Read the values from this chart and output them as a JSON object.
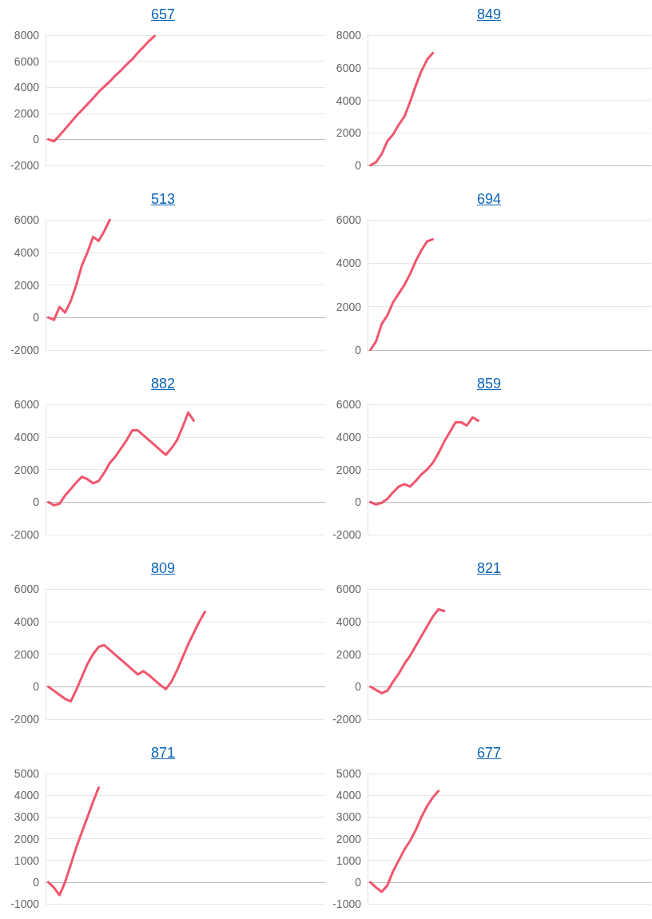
{
  "chart_data": [
    {
      "type": "line",
      "title": "657",
      "color": "#f0566e",
      "ylim": [
        -2000,
        8000
      ],
      "yticks": [
        -2000,
        0,
        2000,
        4000,
        6000,
        8000
      ],
      "grid": "y",
      "tick_labels": "y",
      "marker": "none",
      "categories": [
        null,
        null,
        null,
        null,
        null,
        null,
        null,
        null,
        null,
        null,
        null,
        null,
        null,
        null,
        null,
        null,
        null,
        null,
        null,
        null,
        null,
        null,
        null,
        null,
        null,
        null,
        null,
        null,
        null,
        null,
        null,
        null,
        null,
        null,
        null,
        null,
        null,
        null,
        null,
        null,
        null,
        null,
        null,
        null,
        null,
        null,
        null,
        null,
        null,
        null
      ],
      "values": [
        0,
        -150,
        300,
        800,
        1300,
        1800,
        2250,
        2700,
        3150,
        3650,
        4050,
        4450,
        4900,
        5300,
        5750,
        6150,
        6650,
        7100,
        7550,
        7950,
        null,
        null,
        null,
        null,
        null,
        null,
        null,
        null,
        null,
        null,
        null,
        null,
        null,
        null,
        null,
        null,
        null,
        null,
        null,
        null,
        null,
        null,
        null,
        null,
        null,
        null,
        null,
        null,
        null,
        null
      ]
    },
    {
      "type": "line",
      "title": "849",
      "color": "#f0566e",
      "ylim": [
        0,
        8000
      ],
      "yticks": [
        0,
        2000,
        4000,
        6000,
        8000
      ],
      "grid": "y",
      "tick_labels": "y",
      "marker": "none",
      "categories": [
        null,
        null,
        null,
        null,
        null,
        null,
        null,
        null,
        null,
        null,
        null,
        null,
        null,
        null,
        null,
        null,
        null,
        null,
        null,
        null,
        null,
        null,
        null,
        null,
        null,
        null,
        null,
        null,
        null,
        null,
        null,
        null,
        null,
        null,
        null,
        null,
        null,
        null,
        null,
        null,
        null,
        null,
        null,
        null,
        null,
        null,
        null,
        null,
        null,
        null
      ],
      "values": [
        0,
        200,
        700,
        1500,
        1900,
        2500,
        3000,
        3900,
        4900,
        5800,
        6500,
        6900,
        null,
        null,
        null,
        null,
        null,
        null,
        null,
        null,
        null,
        null,
        null,
        null,
        null,
        null,
        null,
        null,
        null,
        null,
        null,
        null,
        null,
        null,
        null,
        null,
        null,
        null,
        null,
        null,
        null,
        null,
        null,
        null,
        null,
        null,
        null,
        null,
        null,
        null
      ]
    },
    {
      "type": "line",
      "title": "513",
      "color": "#f0566e",
      "ylim": [
        -2000,
        6000
      ],
      "yticks": [
        -2000,
        0,
        2000,
        4000,
        6000
      ],
      "grid": "y",
      "tick_labels": "y",
      "marker": "none",
      "categories": [
        null,
        null,
        null,
        null,
        null,
        null,
        null,
        null,
        null,
        null,
        null,
        null,
        null,
        null,
        null,
        null,
        null,
        null,
        null,
        null,
        null,
        null,
        null,
        null,
        null,
        null,
        null,
        null,
        null,
        null,
        null,
        null,
        null,
        null,
        null,
        null,
        null,
        null,
        null,
        null,
        null,
        null,
        null,
        null,
        null,
        null,
        null,
        null,
        null,
        null
      ],
      "values": [
        0,
        -150,
        650,
        300,
        1000,
        2000,
        3200,
        4000,
        4950,
        4700,
        5300,
        6000,
        null,
        null,
        null,
        null,
        null,
        null,
        null,
        null,
        null,
        null,
        null,
        null,
        null,
        null,
        null,
        null,
        null,
        null,
        null,
        null,
        null,
        null,
        null,
        null,
        null,
        null,
        null,
        null,
        null,
        null,
        null,
        null,
        null,
        null,
        null,
        null,
        null,
        null
      ]
    },
    {
      "type": "line",
      "title": "694",
      "color": "#f0566e",
      "ylim": [
        0,
        6000
      ],
      "yticks": [
        0,
        2000,
        4000,
        6000
      ],
      "grid": "y",
      "tick_labels": "y",
      "marker": "none",
      "categories": [
        null,
        null,
        null,
        null,
        null,
        null,
        null,
        null,
        null,
        null,
        null,
        null,
        null,
        null,
        null,
        null,
        null,
        null,
        null,
        null,
        null,
        null,
        null,
        null,
        null,
        null,
        null,
        null,
        null,
        null,
        null,
        null,
        null,
        null,
        null,
        null,
        null,
        null,
        null,
        null,
        null,
        null,
        null,
        null,
        null,
        null,
        null,
        null,
        null,
        null
      ],
      "values": [
        0,
        400,
        1200,
        1600,
        2200,
        2600,
        3000,
        3500,
        4100,
        4600,
        5000,
        5100,
        null,
        null,
        null,
        null,
        null,
        null,
        null,
        null,
        null,
        null,
        null,
        null,
        null,
        null,
        null,
        null,
        null,
        null,
        null,
        null,
        null,
        null,
        null,
        null,
        null,
        null,
        null,
        null,
        null,
        null,
        null,
        null,
        null,
        null,
        null,
        null,
        null,
        null
      ]
    },
    {
      "type": "line",
      "title": "882",
      "color": "#f0566e",
      "ylim": [
        -2000,
        6000
      ],
      "yticks": [
        -2000,
        0,
        2000,
        4000,
        6000
      ],
      "grid": "y",
      "tick_labels": "y",
      "marker": "none",
      "categories": [
        null,
        null,
        null,
        null,
        null,
        null,
        null,
        null,
        null,
        null,
        null,
        null,
        null,
        null,
        null,
        null,
        null,
        null,
        null,
        null,
        null,
        null,
        null,
        null,
        null,
        null,
        null,
        null,
        null,
        null,
        null,
        null,
        null,
        null,
        null,
        null,
        null,
        null,
        null,
        null,
        null,
        null,
        null,
        null,
        null,
        null,
        null,
        null,
        null,
        null
      ],
      "values": [
        0,
        -200,
        -100,
        400,
        800,
        1200,
        1550,
        1400,
        1150,
        1300,
        1800,
        2400,
        2800,
        3300,
        3800,
        4400,
        4400,
        4100,
        3800,
        3500,
        3200,
        2900,
        3300,
        3800,
        4600,
        5500,
        5000,
        null,
        null,
        null,
        null,
        null,
        null,
        null,
        null,
        null,
        null,
        null,
        null,
        null,
        null,
        null,
        null,
        null,
        null,
        null,
        null,
        null,
        null,
        null
      ]
    },
    {
      "type": "line",
      "title": "859",
      "color": "#f0566e",
      "ylim": [
        -2000,
        6000
      ],
      "yticks": [
        -2000,
        0,
        2000,
        4000,
        6000
      ],
      "grid": "y",
      "tick_labels": "y",
      "marker": "none",
      "categories": [
        null,
        null,
        null,
        null,
        null,
        null,
        null,
        null,
        null,
        null,
        null,
        null,
        null,
        null,
        null,
        null,
        null,
        null,
        null,
        null,
        null,
        null,
        null,
        null,
        null,
        null,
        null,
        null,
        null,
        null,
        null,
        null,
        null,
        null,
        null,
        null,
        null,
        null,
        null,
        null,
        null,
        null,
        null,
        null,
        null,
        null,
        null,
        null,
        null,
        null
      ],
      "values": [
        0,
        -150,
        -50,
        200,
        600,
        950,
        1100,
        950,
        1300,
        1700,
        2000,
        2400,
        3000,
        3700,
        4300,
        4900,
        4900,
        4700,
        5200,
        5000,
        null,
        null,
        null,
        null,
        null,
        null,
        null,
        null,
        null,
        null,
        null,
        null,
        null,
        null,
        null,
        null,
        null,
        null,
        null,
        null,
        null,
        null,
        null,
        null,
        null,
        null,
        null,
        null,
        null,
        null
      ]
    },
    {
      "type": "line",
      "title": "809",
      "color": "#f0566e",
      "ylim": [
        -2000,
        6000
      ],
      "yticks": [
        -2000,
        0,
        2000,
        4000,
        6000
      ],
      "grid": "y",
      "tick_labels": "y",
      "marker": "none",
      "categories": [
        null,
        null,
        null,
        null,
        null,
        null,
        null,
        null,
        null,
        null,
        null,
        null,
        null,
        null,
        null,
        null,
        null,
        null,
        null,
        null,
        null,
        null,
        null,
        null,
        null,
        null,
        null,
        null,
        null,
        null,
        null,
        null,
        null,
        null,
        null,
        null,
        null,
        null,
        null,
        null,
        null,
        null,
        null,
        null,
        null,
        null,
        null,
        null,
        null,
        null
      ],
      "values": [
        0,
        -250,
        -500,
        -750,
        -900,
        -200,
        600,
        1400,
        2000,
        2450,
        2550,
        2250,
        1950,
        1650,
        1350,
        1050,
        750,
        950,
        700,
        400,
        100,
        -150,
        300,
        1000,
        1800,
        2600,
        3300,
        4000,
        4600,
        null,
        null,
        null,
        null,
        null,
        null,
        null,
        null,
        null,
        null,
        null,
        null,
        null,
        null,
        null,
        null,
        null,
        null,
        null,
        null,
        null
      ]
    },
    {
      "type": "line",
      "title": "821",
      "color": "#f0566e",
      "ylim": [
        -2000,
        6000
      ],
      "yticks": [
        -2000,
        0,
        2000,
        4000,
        6000
      ],
      "grid": "y",
      "tick_labels": "y",
      "marker": "none",
      "categories": [
        null,
        null,
        null,
        null,
        null,
        null,
        null,
        null,
        null,
        null,
        null,
        null,
        null,
        null,
        null,
        null,
        null,
        null,
        null,
        null,
        null,
        null,
        null,
        null,
        null,
        null,
        null,
        null,
        null,
        null,
        null,
        null,
        null,
        null,
        null,
        null,
        null,
        null,
        null,
        null,
        null,
        null,
        null,
        null,
        null,
        null,
        null,
        null,
        null,
        null
      ],
      "values": [
        0,
        -200,
        -400,
        -250,
        300,
        800,
        1400,
        1900,
        2500,
        3100,
        3700,
        4300,
        4750,
        4650,
        null,
        null,
        null,
        null,
        null,
        null,
        null,
        null,
        null,
        null,
        null,
        null,
        null,
        null,
        null,
        null,
        null,
        null,
        null,
        null,
        null,
        null,
        null,
        null,
        null,
        null,
        null,
        null,
        null,
        null,
        null,
        null,
        null,
        null,
        null,
        null
      ]
    },
    {
      "type": "line",
      "title": "871",
      "color": "#f0566e",
      "ylim": [
        -1000,
        5000
      ],
      "yticks": [
        -1000,
        0,
        1000,
        2000,
        3000,
        4000,
        5000
      ],
      "grid": "y",
      "tick_labels": "y",
      "marker": "none",
      "categories": [
        null,
        null,
        null,
        null,
        null,
        null,
        null,
        null,
        null,
        null,
        null,
        null,
        null,
        null,
        null,
        null,
        null,
        null,
        null,
        null,
        null,
        null,
        null,
        null,
        null,
        null,
        null,
        null,
        null,
        null,
        null,
        null,
        null,
        null,
        null,
        null,
        null,
        null,
        null,
        null,
        null,
        null,
        null,
        null,
        null,
        null,
        null,
        null,
        null,
        null
      ],
      "values": [
        0,
        -250,
        -600,
        0,
        800,
        1600,
        2300,
        3000,
        3700,
        4350,
        null,
        null,
        null,
        null,
        null,
        null,
        null,
        null,
        null,
        null,
        null,
        null,
        null,
        null,
        null,
        null,
        null,
        null,
        null,
        null,
        null,
        null,
        null,
        null,
        null,
        null,
        null,
        null,
        null,
        null,
        null,
        null,
        null,
        null,
        null,
        null,
        null,
        null,
        null,
        null
      ]
    },
    {
      "type": "line",
      "title": "677",
      "color": "#f0566e",
      "ylim": [
        -1000,
        5000
      ],
      "yticks": [
        -1000,
        0,
        1000,
        2000,
        3000,
        4000,
        5000
      ],
      "grid": "y",
      "tick_labels": "y",
      "marker": "none",
      "categories": [
        null,
        null,
        null,
        null,
        null,
        null,
        null,
        null,
        null,
        null,
        null,
        null,
        null,
        null,
        null,
        null,
        null,
        null,
        null,
        null,
        null,
        null,
        null,
        null,
        null,
        null,
        null,
        null,
        null,
        null,
        null,
        null,
        null,
        null,
        null,
        null,
        null,
        null,
        null,
        null,
        null,
        null,
        null,
        null,
        null,
        null,
        null,
        null,
        null,
        null
      ],
      "values": [
        0,
        -250,
        -450,
        -150,
        500,
        1000,
        1500,
        1900,
        2400,
        3000,
        3500,
        3900,
        4200,
        null,
        null,
        null,
        null,
        null,
        null,
        null,
        null,
        null,
        null,
        null,
        null,
        null,
        null,
        null,
        null,
        null,
        null,
        null,
        null,
        null,
        null,
        null,
        null,
        null,
        null,
        null,
        null,
        null,
        null,
        null,
        null,
        null,
        null,
        null,
        null,
        null
      ]
    }
  ]
}
